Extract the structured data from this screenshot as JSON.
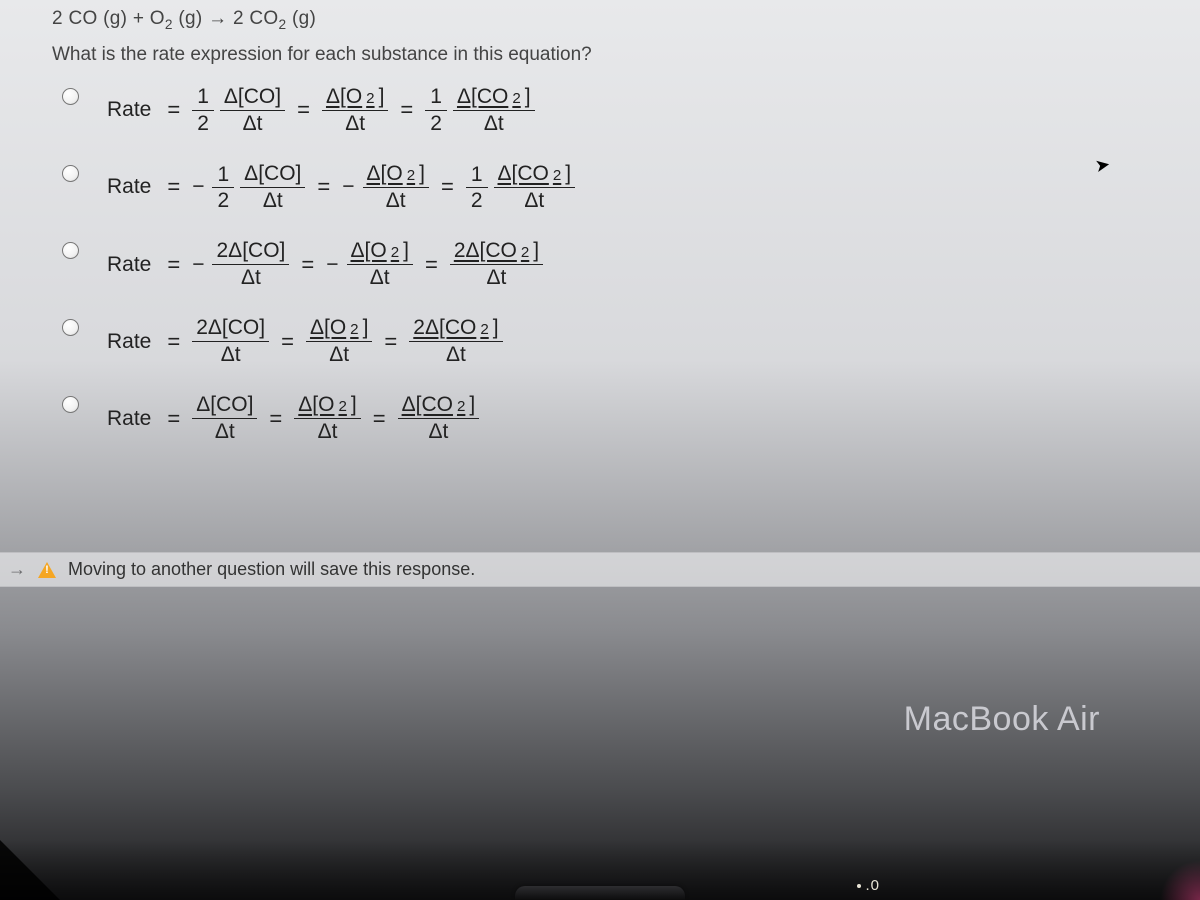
{
  "reaction_html": "2 CO (g) + O<sub>2</sub> (g) → 2 CO<sub>2</sub> (g)",
  "question": "What is the rate expression for each substance in this equation?",
  "rate_label": "Rate",
  "options": [
    {
      "terms": [
        {
          "sign": "",
          "coef": "1/2",
          "species_html": "Δ[CO]"
        },
        {
          "sign": "",
          "coef": "",
          "species_html": "Δ[O<span class='sub'>2</span>]",
          "underline": true
        },
        {
          "sign": "",
          "coef": "1/2",
          "species_html": "Δ[CO<span class='sub'>2</span>]",
          "underline": true
        }
      ]
    },
    {
      "terms": [
        {
          "sign": "−",
          "coef": "1/2",
          "species_html": "Δ[CO]"
        },
        {
          "sign": "−",
          "coef": "",
          "species_html": "Δ[O<span class='sub'>2</span>]",
          "underline": true
        },
        {
          "sign": "",
          "coef": "1/2",
          "species_html": "Δ[CO<span class='sub'>2</span>]",
          "underline": true
        }
      ]
    },
    {
      "terms": [
        {
          "sign": "−",
          "coef": "",
          "species_html": "2Δ[CO]"
        },
        {
          "sign": "−",
          "coef": "",
          "species_html": "Δ[O<span class='sub'>2</span>]",
          "underline": true
        },
        {
          "sign": "",
          "coef": "",
          "species_html": "2Δ[CO<span class='sub'>2</span>]",
          "underline": true
        }
      ]
    },
    {
      "terms": [
        {
          "sign": "",
          "coef": "",
          "species_html": "2Δ[CO]"
        },
        {
          "sign": "",
          "coef": "",
          "species_html": "Δ[O<span class='sub'>2</span>]",
          "underline": true
        },
        {
          "sign": "",
          "coef": "",
          "species_html": "2Δ[CO<span class='sub'>2</span>]",
          "underline": true
        }
      ]
    },
    {
      "terms": [
        {
          "sign": "",
          "coef": "",
          "species_html": "Δ[CO]"
        },
        {
          "sign": "",
          "coef": "",
          "species_html": "Δ[O<span class='sub'>2</span>]",
          "underline": true
        },
        {
          "sign": "",
          "coef": "",
          "species_html": "Δ[CO<span class='sub'>2</span>]",
          "underline": true
        }
      ]
    }
  ],
  "delta_t": "Δt",
  "save_warning": "Moving to another question will save this response.",
  "device_label": "MacBook Air",
  "key_hint": ".0"
}
